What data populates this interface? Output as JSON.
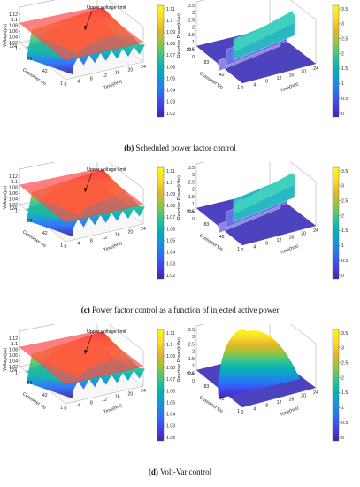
{
  "panels": [
    {
      "caption": {
        "letter": "(b)",
        "text": "Scheduled power factor control"
      },
      "left": {
        "annotation": "Upper voltage limit",
        "zlabel": "Voltage(pu)",
        "xlabel": "Time(hrs)",
        "ylabel": "Customer No",
        "zticks": [
          "1.12",
          "1.1",
          "1.08",
          "1.06",
          "1.04",
          "1.02",
          "1"
        ],
        "xticks": [
          "0",
          "4",
          "8",
          "12",
          "16",
          "20",
          "24"
        ],
        "yticks": [
          "124",
          "83",
          "42",
          "1"
        ],
        "cbticks": [
          "1.11",
          "1.1",
          "1.09",
          "1.08",
          "1.07",
          "1.06",
          "1.05",
          "1.04",
          "1.03",
          "1.02"
        ]
      },
      "right": {
        "zlabel": "Reactive Power(kVar)",
        "xlabel": "Time(hrs)",
        "ylabel": "Customer No",
        "zticks": [
          "3.5",
          "3",
          "2.5",
          "2",
          "1.5",
          "1",
          "0.5",
          "0"
        ],
        "xticks": [
          "0",
          "4",
          "8",
          "12",
          "16",
          "20",
          "24"
        ],
        "yticks": [
          "124",
          "83",
          "42",
          "1"
        ],
        "cbticks": [
          "3.5",
          "3",
          "2.5",
          "2",
          "1.5",
          "1",
          "0.5",
          "0"
        ]
      }
    },
    {
      "caption": {
        "letter": "(c)",
        "text": "Power factor control as a function of injected active power"
      },
      "left": {
        "annotation": "Upper voltage limit",
        "zlabel": "Voltage(pu)",
        "xlabel": "Time(hrs)",
        "ylabel": "Customer No",
        "zticks": [
          "1.12",
          "1.1",
          "1.08",
          "1.06",
          "1.04",
          "1.02",
          "1"
        ],
        "xticks": [
          "0",
          "4",
          "8",
          "12",
          "16",
          "20",
          "24"
        ],
        "yticks": [
          "124",
          "83",
          "42",
          "1"
        ],
        "cbticks": [
          "1.11",
          "1.1",
          "1.09",
          "1.08",
          "1.07",
          "1.06",
          "1.05",
          "1.04",
          "1.03",
          "1.02"
        ]
      },
      "right": {
        "zlabel": "Reactive Power(kVar)",
        "xlabel": "Time(hrs)",
        "ylabel": "Customer No",
        "zticks": [
          "3.5",
          "3",
          "2.5",
          "2",
          "1.5",
          "1",
          "0.5",
          "0"
        ],
        "xticks": [
          "0",
          "4",
          "8",
          "12",
          "16",
          "20",
          "24"
        ],
        "yticks": [
          "124",
          "83",
          "42",
          "1"
        ],
        "cbticks": [
          "3.5",
          "3",
          "2.5",
          "2",
          "1.5",
          "1",
          "0.5",
          "0"
        ]
      }
    },
    {
      "caption": {
        "letter": "(d)",
        "text": "Volt-Var control"
      },
      "left": {
        "annotation": "Upper voltage limit",
        "zlabel": "Voltage(pu)",
        "xlabel": "Time(hrs)",
        "ylabel": "Customer No",
        "zticks": [
          "1.12",
          "1.1",
          "1.08",
          "1.06",
          "1.04",
          "1.02",
          "1"
        ],
        "xticks": [
          "0",
          "4",
          "8",
          "12",
          "16",
          "20",
          "24"
        ],
        "yticks": [
          "124",
          "83",
          "42",
          "1"
        ],
        "cbticks": [
          "1.11",
          "1.1",
          "1.09",
          "1.08",
          "1.07",
          "1.06",
          "1.05",
          "1.04",
          "1.03",
          "1.02"
        ]
      },
      "right": {
        "zlabel": "Reactive Power(kVar)",
        "xlabel": "Time(hrs)",
        "ylabel": "Customer No",
        "zticks": [
          "3.5",
          "3",
          "2.5",
          "2",
          "1.5",
          "1",
          "0.5",
          "0"
        ],
        "xticks": [
          "0",
          "4",
          "8",
          "12",
          "16",
          "20",
          "24"
        ],
        "yticks": [
          "124",
          "83",
          "42",
          "1"
        ],
        "cbticks": [
          "3.5",
          "3",
          "2.5",
          "2",
          "1.5",
          "1",
          "0.5",
          "0"
        ]
      }
    }
  ]
}
